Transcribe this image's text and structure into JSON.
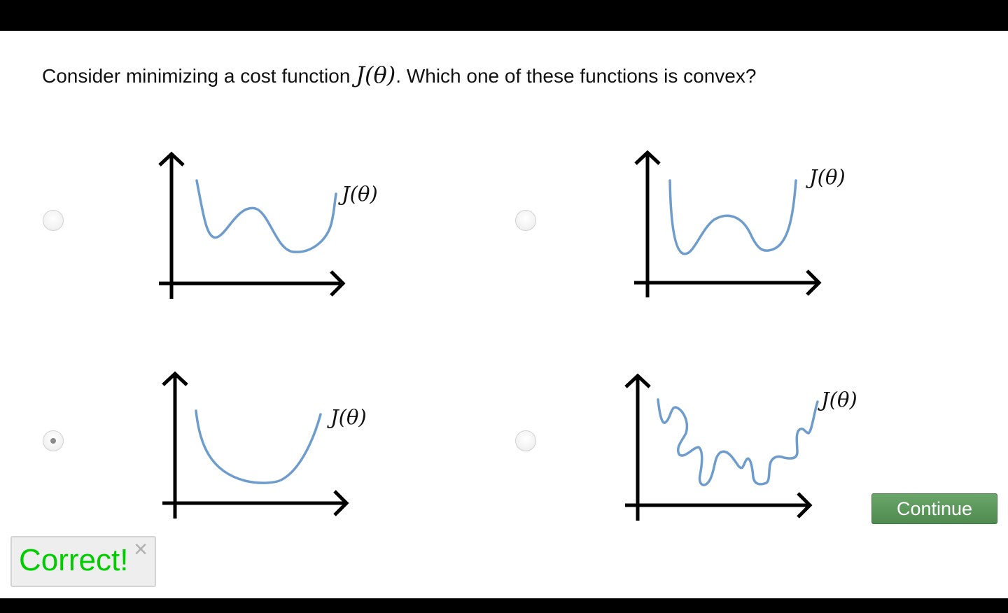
{
  "question": {
    "prefix": "Consider minimizing a cost function ",
    "math": "J(θ)",
    "suffix": ". Which one of these functions is convex?"
  },
  "options": [
    {
      "label": "J(θ)",
      "selected": false,
      "curve": "two-minima-asymmetric"
    },
    {
      "label": "J(θ)",
      "selected": false,
      "curve": "two-minima-symmetric"
    },
    {
      "label": "J(θ)",
      "selected": true,
      "curve": "convex-bowl"
    },
    {
      "label": "J(θ)",
      "selected": false,
      "curve": "wiggly-many-minima"
    }
  ],
  "continue_label": "Continue",
  "feedback": {
    "text": "Correct!",
    "close_icon": "×"
  },
  "colors": {
    "curve": "#6e9ccc",
    "correct_text": "#00cc00",
    "continue_bg": "#5a965a"
  }
}
